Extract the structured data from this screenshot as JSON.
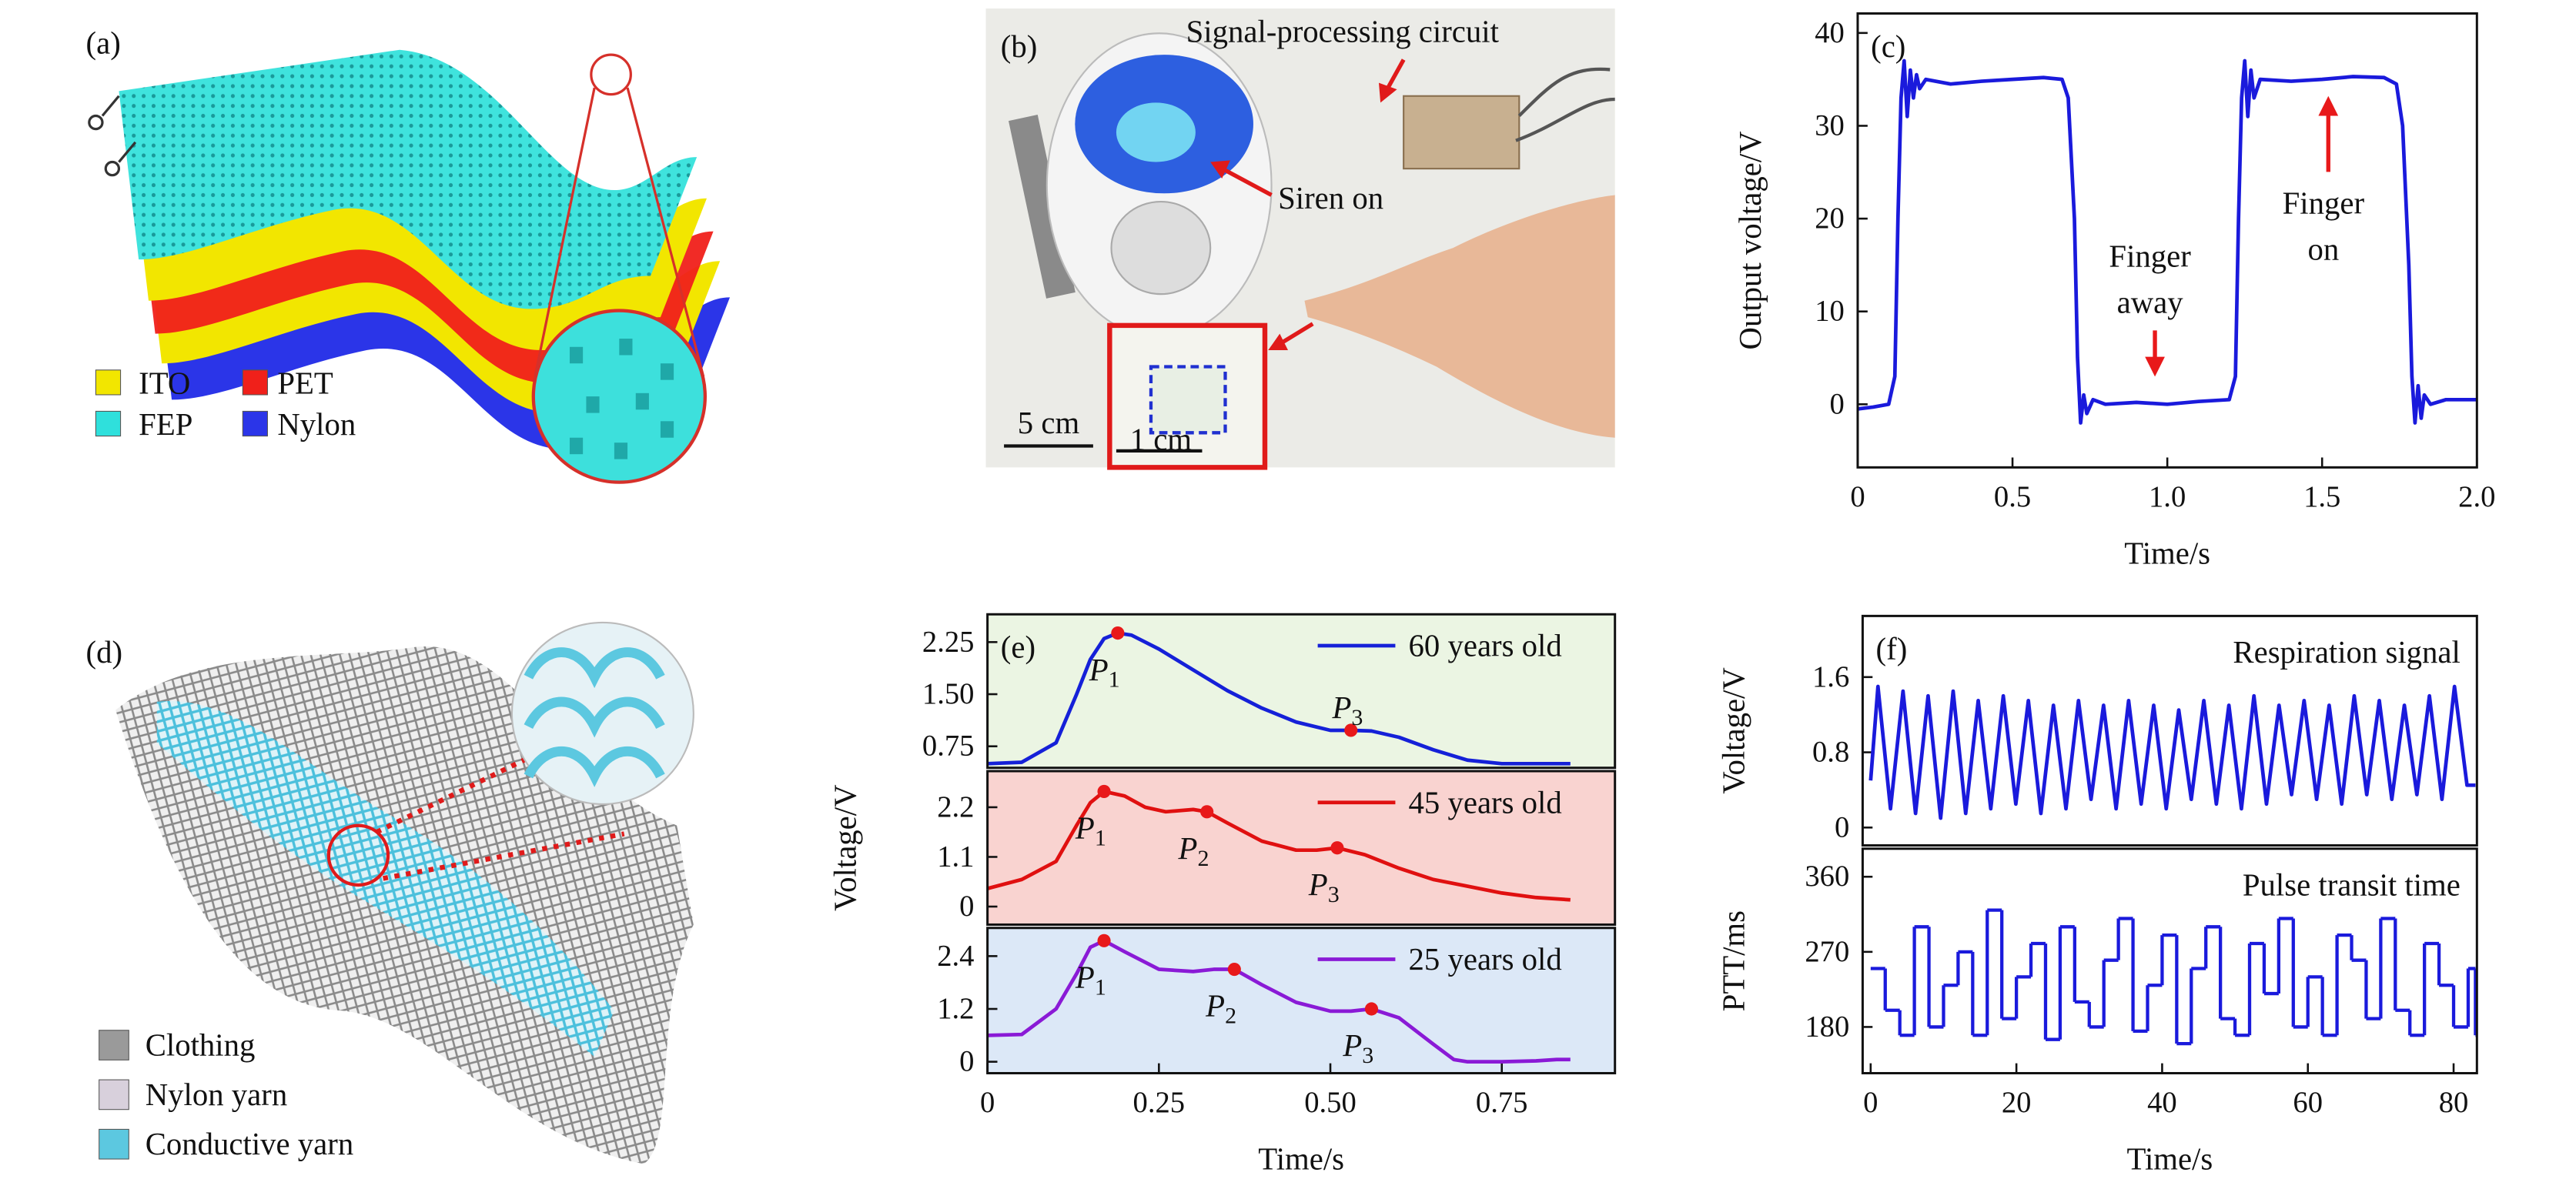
{
  "chart_data": [
    {
      "type": "line",
      "label": "(c)",
      "xlabel": "Time/s",
      "ylabel": "Output voltage/V",
      "xlim": [
        0,
        2.0
      ],
      "ylim": [
        -6.8,
        42.1
      ],
      "xticks": [
        0,
        0.5,
        {
          "value": 1,
          "label": "1.0"
        },
        1.5,
        {
          "value": 2,
          "label": "2.0"
        }
      ],
      "yticks": [
        0,
        10,
        20,
        30,
        40
      ],
      "series": [
        {
          "color": "#1a1adc",
          "x": [
            0,
            0.05,
            0.1,
            0.12,
            0.13,
            0.14,
            0.15,
            0.16,
            0.17,
            0.18,
            0.19,
            0.2,
            0.22,
            0.3,
            0.4,
            0.5,
            0.6,
            0.66,
            0.68,
            0.7,
            0.71,
            0.72,
            0.73,
            0.74,
            0.76,
            0.8,
            0.9,
            1.0,
            1.1,
            1.2,
            1.22,
            1.23,
            1.24,
            1.25,
            1.26,
            1.27,
            1.28,
            1.3,
            1.4,
            1.5,
            1.6,
            1.7,
            1.74,
            1.76,
            1.78,
            1.79,
            1.8,
            1.81,
            1.82,
            1.83,
            1.85,
            1.9,
            2.0
          ],
          "values": [
            -0.5,
            -0.3,
            0,
            3,
            20,
            33,
            37,
            31,
            36,
            33,
            35.5,
            34,
            35,
            34.5,
            34.8,
            35,
            35.2,
            35,
            33,
            20,
            5,
            -2,
            1,
            -1,
            0.5,
            0,
            0.2,
            0,
            0.3,
            0.5,
            3,
            20,
            33,
            37,
            31,
            36,
            33,
            35,
            34.8,
            35,
            35.3,
            35.2,
            34.5,
            30,
            15,
            3,
            -2,
            2,
            -1.5,
            1,
            0,
            0.5,
            0.5
          ]
        }
      ],
      "annotations": [
        {
          "lines": [
            "Finger",
            "away"
          ]
        },
        {
          "lines": [
            "Finger",
            "on"
          ]
        }
      ],
      "arrow_color": "#e8191a"
    },
    {
      "type": "line",
      "label": "(e)",
      "xlim": [
        0,
        0.915
      ],
      "ylim": [
        0.44,
        2.65
      ],
      "yticks": [
        2.25,
        {
          "value": 1.5,
          "label": "1.50"
        },
        0.75
      ],
      "background": "#ebf5e3",
      "series": [
        {
          "name": "60 years old",
          "color": "#1520d8",
          "x": [
            0,
            0.05,
            0.1,
            0.13,
            0.15,
            0.17,
            0.19,
            0.21,
            0.25,
            0.3,
            0.35,
            0.4,
            0.45,
            0.5,
            0.53,
            0.56,
            0.6,
            0.65,
            0.7,
            0.75,
            0.8,
            0.85
          ],
          "values": [
            0.5,
            0.52,
            0.8,
            1.5,
            2.0,
            2.3,
            2.38,
            2.35,
            2.15,
            1.85,
            1.55,
            1.3,
            1.1,
            0.98,
            0.98,
            0.97,
            0.88,
            0.7,
            0.55,
            0.5,
            0.5,
            0.5
          ]
        }
      ],
      "annotations": [
        {
          "text": "P",
          "sub": "1",
          "x": 0.19,
          "y": 2.38
        },
        {
          "text": "P",
          "sub": "3",
          "x": 0.53,
          "y": 0.98
        }
      ],
      "marker_color": "#e8191a"
    },
    {
      "type": "line",
      "ylabel": "Voltage/V",
      "xlim": [
        0,
        0.915
      ],
      "ylim": [
        -0.4,
        3.0
      ],
      "yticks": [
        2.2,
        1.1,
        0
      ],
      "background": "#f9d3d0",
      "series": [
        {
          "name": "45 years old",
          "color": "#e01010",
          "x": [
            0,
            0.05,
            0.1,
            0.13,
            0.15,
            0.17,
            0.2,
            0.23,
            0.26,
            0.3,
            0.32,
            0.35,
            0.4,
            0.45,
            0.48,
            0.51,
            0.55,
            0.6,
            0.65,
            0.7,
            0.75,
            0.8,
            0.85
          ],
          "values": [
            0.4,
            0.6,
            1.0,
            1.8,
            2.3,
            2.55,
            2.45,
            2.2,
            2.1,
            2.15,
            2.1,
            1.85,
            1.45,
            1.25,
            1.25,
            1.3,
            1.15,
            0.85,
            0.6,
            0.45,
            0.3,
            0.2,
            0.15
          ]
        }
      ],
      "annotations": [
        {
          "text": "P",
          "sub": "1",
          "x": 0.17,
          "y": 2.55
        },
        {
          "text": "P",
          "sub": "2",
          "x": 0.32,
          "y": 2.1
        },
        {
          "text": "P",
          "sub": "3",
          "x": 0.51,
          "y": 1.3
        }
      ],
      "marker_color": "#e8191a"
    },
    {
      "type": "line",
      "xlabel": "Time/s",
      "xlim": [
        0,
        0.915
      ],
      "ylim": [
        -0.26,
        3.04
      ],
      "xticks": [
        0,
        0.25,
        {
          "value": 0.5,
          "label": "0.50"
        },
        0.75
      ],
      "yticks": [
        2.4,
        1.2,
        0
      ],
      "background": "#dce8f7",
      "series": [
        {
          "name": "25 years old",
          "color": "#8a1ad6",
          "x": [
            0,
            0.05,
            0.1,
            0.13,
            0.15,
            0.17,
            0.2,
            0.25,
            0.3,
            0.33,
            0.36,
            0.4,
            0.45,
            0.5,
            0.53,
            0.56,
            0.6,
            0.65,
            0.68,
            0.7,
            0.75,
            0.8,
            0.83,
            0.85
          ],
          "values": [
            0.6,
            0.62,
            1.2,
            2.0,
            2.6,
            2.75,
            2.5,
            2.1,
            2.05,
            2.1,
            2.1,
            1.75,
            1.35,
            1.15,
            1.15,
            1.2,
            1.0,
            0.4,
            0.05,
            0,
            0,
            0.02,
            0.05,
            0.05
          ]
        }
      ],
      "annotations": [
        {
          "text": "P",
          "sub": "1",
          "x": 0.17,
          "y": 2.75
        },
        {
          "text": "P",
          "sub": "2",
          "x": 0.36,
          "y": 2.1
        },
        {
          "text": "P",
          "sub": "3",
          "x": 0.56,
          "y": 1.2
        }
      ],
      "marker_color": "#e8191a"
    },
    {
      "type": "line",
      "label": "(f)",
      "title": "Respiration signal",
      "ylabel": "Voltage/V",
      "xlim": [
        -1.1,
        83.2
      ],
      "ylim": [
        -0.19,
        2.25
      ],
      "yticks": [
        1.6,
        0.8,
        0
      ],
      "series": [
        {
          "color": "#1a1adc",
          "x": [
            0,
            1.0,
            2.72,
            4.44,
            6.16,
            7.88,
            9.6,
            11.32,
            13.04,
            14.76,
            16.48,
            18.2,
            19.92,
            21.64,
            23.36,
            25.08,
            26.8,
            28.52,
            30.24,
            31.96,
            33.68,
            35.4,
            37.12,
            38.84,
            40.56,
            42.28,
            44.0,
            45.72,
            47.44,
            49.16,
            50.88,
            52.6,
            54.32,
            56.04,
            57.76,
            59.48,
            61.2,
            62.92,
            64.64,
            66.36,
            68.08,
            69.8,
            71.52,
            73.24,
            74.96,
            76.68,
            78.4,
            80.12,
            81.84,
            83
          ],
          "values": [
            0.5,
            1.5,
            0.2,
            1.45,
            0.15,
            1.4,
            0.1,
            1.45,
            0.15,
            1.35,
            0.2,
            1.4,
            0.25,
            1.35,
            0.15,
            1.3,
            0.2,
            1.35,
            0.3,
            1.3,
            0.2,
            1.35,
            0.25,
            1.3,
            0.2,
            1.25,
            0.3,
            1.35,
            0.25,
            1.3,
            0.2,
            1.4,
            0.25,
            1.3,
            0.35,
            1.35,
            0.3,
            1.3,
            0.25,
            1.4,
            0.35,
            1.35,
            0.3,
            1.3,
            0.35,
            1.4,
            0.3,
            1.5,
            0.45,
            0.45
          ]
        }
      ]
    },
    {
      "type": "step",
      "title": "Pulse transit time",
      "ylabel": "PTT/ms",
      "xlabel": "Time/s",
      "xlim": [
        -1.1,
        83.2
      ],
      "ylim": [
        124.6,
        393.6
      ],
      "xticks": [
        0,
        20,
        40,
        60,
        80
      ],
      "yticks": [
        360,
        270,
        180
      ],
      "series": [
        {
          "color": "#1a1adc",
          "x": [
            0,
            2,
            4,
            6,
            8,
            10,
            12,
            14,
            16,
            18,
            20,
            22,
            24,
            26,
            28,
            30,
            32,
            34,
            36,
            38,
            40,
            42,
            44,
            46,
            48,
            50,
            52,
            54,
            56,
            58,
            60,
            62,
            64,
            66,
            68,
            70,
            72,
            74,
            76,
            78,
            80,
            82,
            83
          ],
          "values": [
            250,
            200,
            170,
            300,
            180,
            230,
            270,
            170,
            320,
            190,
            240,
            280,
            165,
            300,
            210,
            180,
            260,
            310,
            175,
            230,
            290,
            160,
            250,
            300,
            190,
            170,
            280,
            220,
            310,
            180,
            240,
            170,
            290,
            260,
            190,
            310,
            200,
            170,
            280,
            230,
            180,
            250,
            170
          ]
        }
      ]
    }
  ],
  "illustrations": [
    {
      "label": "(a)",
      "legend": [
        {
          "name": "ITO",
          "color": "#f2e600"
        },
        {
          "name": "PET",
          "color": "#f0201a"
        },
        {
          "name": "FEP",
          "color": "#2fe0dc"
        },
        {
          "name": "Nylon",
          "color": "#2b35e8"
        }
      ]
    },
    {
      "label": "(b)",
      "annotations": [
        "Signal-processing circuit",
        "Siren on"
      ],
      "scale_bars": [
        "5 cm",
        "1 cm"
      ]
    },
    {
      "label": "(d)",
      "legend": [
        {
          "name": "Clothing",
          "color": "#9a9a9a"
        },
        {
          "name": "Nylon yarn",
          "color": "#d8d0dc"
        },
        {
          "name": "Conductive yarn",
          "color": "#5cc8e0"
        }
      ]
    }
  ]
}
